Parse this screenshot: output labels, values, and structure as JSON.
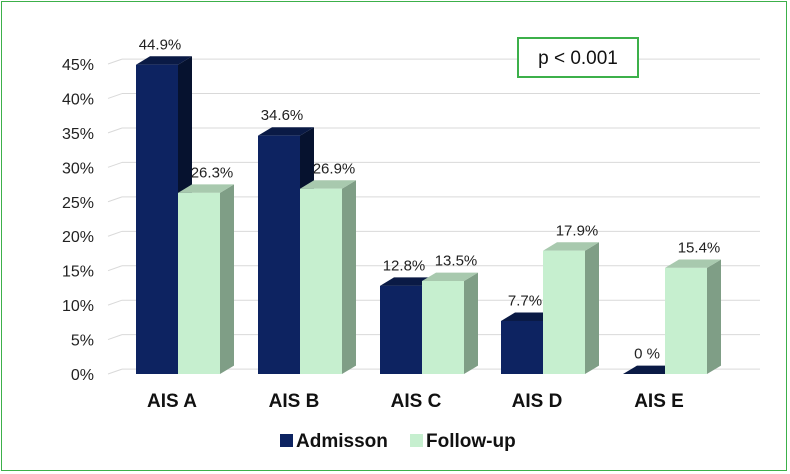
{
  "chart_data": {
    "type": "bar",
    "title": "",
    "xlabel": "",
    "ylabel": "",
    "categories": [
      "AIS A",
      "AIS B",
      "AIS C",
      "AIS D",
      "AIS E"
    ],
    "series": [
      {
        "name": "Admisson",
        "color": "#0d2361",
        "side_color": "#06122f",
        "top_color": "#0a1a45",
        "values": [
          44.9,
          34.6,
          12.8,
          7.7,
          0
        ],
        "labels": [
          "44.9%",
          "34.6%",
          "12.8%",
          "7.7%",
          "0 %"
        ]
      },
      {
        "name": "Follow-up",
        "color": "#c6efcf",
        "side_color": "#7f9e86",
        "top_color": "#a8c9ae",
        "values": [
          26.3,
          26.9,
          13.5,
          17.9,
          15.4
        ],
        "labels": [
          "26.3%",
          "26.9%",
          "13.5%",
          "17.9%",
          "15.4%"
        ]
      }
    ],
    "ylim": [
      0,
      45
    ],
    "yticks": [
      0,
      5,
      10,
      15,
      20,
      25,
      30,
      35,
      40,
      45
    ],
    "ytick_labels": [
      "0%",
      "5%",
      "10%",
      "15%",
      "20%",
      "25%",
      "30%",
      "35%",
      "40%",
      "45%"
    ],
    "grid": true,
    "legend_position": "bottom",
    "annotation": "p < 0.001",
    "annotation_border_color": "#3cb04a"
  }
}
